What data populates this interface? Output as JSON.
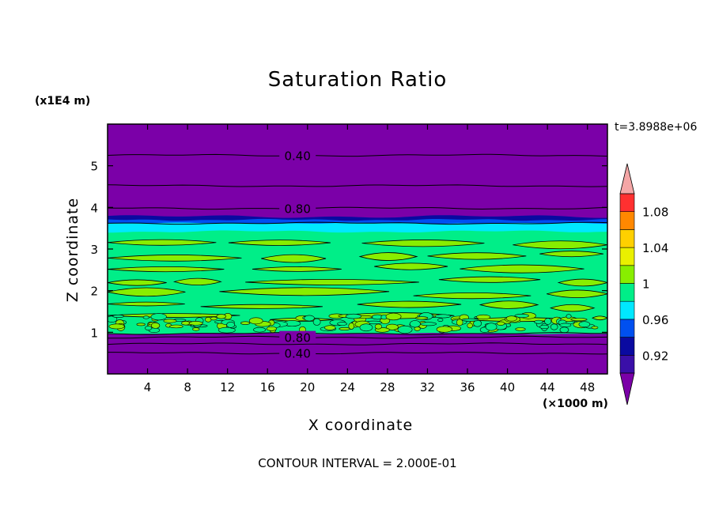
{
  "chart_data": {
    "type": "heatmap",
    "title": "Saturation Ratio",
    "xlabel": "X coordinate",
    "ylabel": "Z coordinate",
    "x_unit": "(×1000 m)",
    "y_unit": "(x1E4 m)",
    "time_label": "t=3.8988e+06",
    "footer": "CONTOUR INTERVAL = 2.000E-01",
    "xlim": [
      0,
      50
    ],
    "ylim": [
      0,
      6
    ],
    "x_ticks": [
      4,
      8,
      12,
      16,
      20,
      24,
      28,
      32,
      36,
      40,
      44,
      48
    ],
    "y_ticks": [
      1,
      2,
      3,
      4,
      5
    ],
    "contour_labels": [
      {
        "text": "0.40",
        "x": 17.5,
        "z": 5.25
      },
      {
        "text": "0.80",
        "x": 17.5,
        "z": 3.98
      },
      {
        "text": "0.80",
        "x": 17.5,
        "z": 0.88
      },
      {
        "text": "0.40",
        "x": 17.5,
        "z": 0.5
      }
    ],
    "colorbar": {
      "levels": [
        0.9,
        0.92,
        0.94,
        0.96,
        0.98,
        1.0,
        1.02,
        1.04,
        1.06,
        1.08,
        1.1
      ],
      "tick_labels": [
        "0.92",
        "0.96",
        "1",
        "1.04",
        "1.08"
      ],
      "colors": [
        "#3a0fa8",
        "#0a0aa0",
        "#0050f0",
        "#00e8ff",
        "#00ee88",
        "#88ee00",
        "#eaf000",
        "#ffd000",
        "#ff8800",
        "#ff3030"
      ],
      "under_color": "#7b00a8",
      "over_color": "#f4a6a6"
    }
  }
}
